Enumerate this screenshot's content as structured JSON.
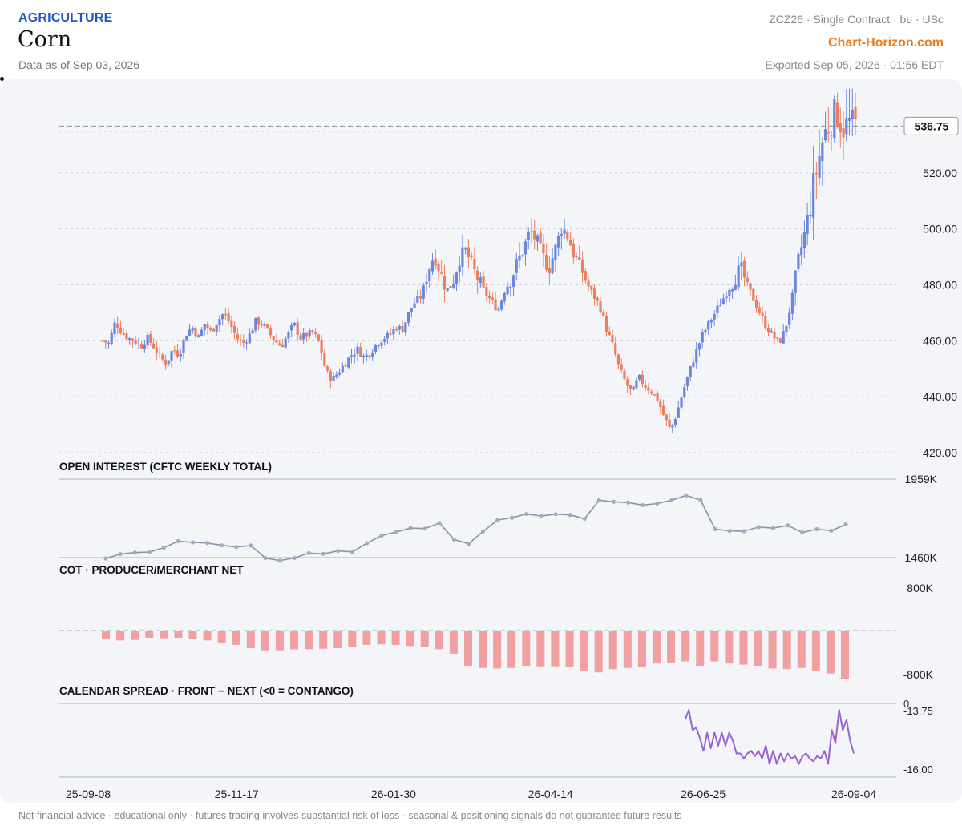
{
  "header": {
    "category": "AGRICULTURE",
    "title": "Corn",
    "as_of": "Data as of Sep 03, 2026",
    "contract": "ZCZ26 · Single Contract · bu · USc",
    "brand": "Chart-Horizon.com",
    "exported": "Exported Sep 05, 2026 · 01:56 EDT"
  },
  "footer": "Not financial advice · educational only · futures trading involves substantial risk of loss · seasonal & positioning signals do not guarantee future results",
  "colors": {
    "up": "#6b86e0",
    "down": "#ec7e5e",
    "oi": "#8a93a8",
    "cot": "#f0a0a0",
    "spread": "#9a63d8"
  },
  "chart_data": [
    {
      "type": "candlestick",
      "ylim": [
        420,
        544
      ],
      "yticks": [
        {
          "v": 420,
          "label": "420.00"
        },
        {
          "v": 440,
          "label": "440.00"
        },
        {
          "v": 460,
          "label": "460.00"
        },
        {
          "v": 480,
          "label": "480.00"
        },
        {
          "v": 500,
          "label": "500.00"
        },
        {
          "v": 520,
          "label": "520.00"
        }
      ],
      "last_price": 536.75,
      "last_label": "536.75",
      "x_range": [
        "2025-09-08",
        "2026-09-04"
      ],
      "xticks": [
        "25-09-08",
        "25-11-17",
        "26-01-30",
        "26-04-14",
        "26-06-25",
        "26-09-04"
      ],
      "close_path": [
        460,
        459,
        467,
        463,
        461,
        460,
        458,
        461,
        458,
        454,
        452,
        457,
        455,
        462,
        465,
        461,
        466,
        463,
        467,
        470,
        466,
        461,
        459,
        462,
        467,
        466,
        463,
        460,
        458,
        462,
        466,
        461,
        462,
        463,
        459,
        449,
        446,
        449,
        452,
        455,
        457,
        454,
        456,
        459,
        461,
        462,
        465,
        464,
        470,
        474,
        476,
        485,
        491,
        484,
        478,
        482,
        490,
        492,
        486,
        481,
        477,
        474,
        471,
        478,
        482,
        488,
        493,
        499,
        496,
        490,
        486,
        493,
        501,
        497,
        490,
        486,
        480,
        476,
        472,
        464,
        458,
        450,
        445,
        441,
        447,
        444,
        442,
        439,
        433,
        428,
        434,
        442,
        449,
        456,
        462,
        466,
        470,
        474,
        478,
        482,
        486,
        480,
        475,
        470,
        465,
        462,
        459,
        464,
        474,
        488,
        498,
        510,
        522,
        533,
        538,
        542,
        536,
        538,
        536.75
      ]
    },
    {
      "type": "line",
      "title": "OPEN INTEREST (CFTC WEEKLY TOTAL)",
      "ylim": [
        1460,
        1959
      ],
      "yticks": [
        {
          "v": 1959,
          "label": "1959K"
        },
        {
          "v": 1460,
          "label": "1460K"
        }
      ],
      "values": [
        1460,
        1488,
        1497,
        1500,
        1528,
        1570,
        1562,
        1558,
        1543,
        1533,
        1542,
        1462,
        1446,
        1463,
        1494,
        1489,
        1508,
        1502,
        1557,
        1605,
        1627,
        1653,
        1650,
        1685,
        1580,
        1553,
        1631,
        1704,
        1719,
        1742,
        1730,
        1741,
        1737,
        1712,
        1830,
        1820,
        1815,
        1799,
        1809,
        1830,
        1860,
        1830,
        1646,
        1635,
        1633,
        1659,
        1653,
        1670,
        1625,
        1646,
        1636,
        1676
      ]
    },
    {
      "type": "bar",
      "title": "COT · PRODUCER/MERCHANT NET",
      "ylim": [
        -800,
        800
      ],
      "yticks": [
        {
          "v": 800,
          "label": "800K"
        },
        {
          "v": -800,
          "label": "-800K"
        }
      ],
      "values": [
        -160,
        -180,
        -170,
        -130,
        -140,
        -130,
        -150,
        -180,
        -220,
        -260,
        -320,
        -360,
        -360,
        -340,
        -340,
        -330,
        -320,
        -300,
        -260,
        -250,
        -260,
        -280,
        -300,
        -340,
        -420,
        -640,
        -680,
        -690,
        -680,
        -640,
        -650,
        -650,
        -660,
        -730,
        -760,
        -700,
        -680,
        -660,
        -600,
        -580,
        -560,
        -640,
        -560,
        -600,
        -620,
        -640,
        -690,
        -700,
        -680,
        -730,
        -780,
        -880
      ]
    },
    {
      "type": "line",
      "title": "CALENDAR SPREAD · FRONT − NEXT (<0 = CONTANGO)",
      "ylim": [
        -16.0,
        -13.75
      ],
      "zero_label": "0",
      "yticks": [
        {
          "v": -13.75,
          "label": "-13.75"
        },
        {
          "v": -16.0,
          "label": "-16.00"
        }
      ],
      "x_start": "2026-06-15",
      "values": [
        -14.1,
        -13.72,
        -14.5,
        -14.4,
        -14.8,
        -15.3,
        -14.6,
        -15.2,
        -14.6,
        -15.1,
        -14.6,
        -15.1,
        -14.6,
        -14.9,
        -15.4,
        -15.4,
        -15.6,
        -15.4,
        -15.3,
        -15.5,
        -15.3,
        -15.6,
        -15.1,
        -15.8,
        -15.3,
        -15.8,
        -15.4,
        -15.7,
        -15.4,
        -15.6,
        -15.5,
        -15.8,
        -15.5,
        -15.4,
        -15.6,
        -15.7,
        -15.5,
        -15.6,
        -15.3,
        -15.8,
        -14.5,
        -15.0,
        -13.72,
        -14.5,
        -14.1,
        -14.9,
        -15.4
      ]
    }
  ]
}
